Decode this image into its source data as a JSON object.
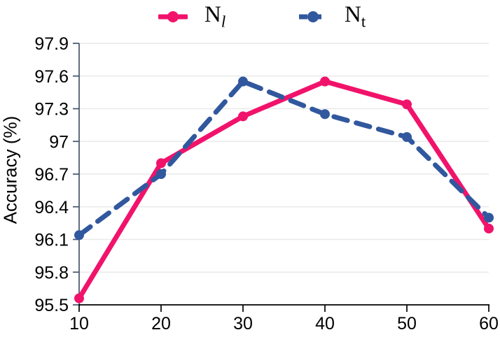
{
  "chart_data": {
    "type": "line",
    "title": "",
    "xlabel": "",
    "ylabel": "Accuracy (%)",
    "x": [
      10,
      20,
      30,
      40,
      50,
      60
    ],
    "xticks": [
      "10",
      "20",
      "30",
      "40",
      "50",
      "60"
    ],
    "yticks": [
      "97.9",
      "97.6",
      "97.3",
      "97",
      "96.7",
      "96.4",
      "96.1",
      "95.8",
      "95.5"
    ],
    "xlim": [
      10,
      60
    ],
    "ylim": [
      95.5,
      97.9
    ],
    "ytick_step": 0.3,
    "grid": "horizontal",
    "legend_position": "top-center",
    "colors": {
      "grid": "#E9E9E9",
      "y_axis": "#44546A",
      "x_axis": "#000000",
      "tick_text": "#000000"
    },
    "series": [
      {
        "name": "N_l",
        "label_base": "N",
        "label_sub": "l",
        "color": "#F1136B",
        "style": "solid",
        "marker": "circle",
        "values": [
          95.56,
          96.8,
          97.23,
          97.55,
          97.34,
          96.2
        ]
      },
      {
        "name": "N_t",
        "label_base": "N",
        "label_sub": "t",
        "color": "#31589E",
        "style": "dashed",
        "marker": "circle",
        "values": [
          96.14,
          96.7,
          97.55,
          97.25,
          97.04,
          96.3
        ]
      }
    ]
  }
}
